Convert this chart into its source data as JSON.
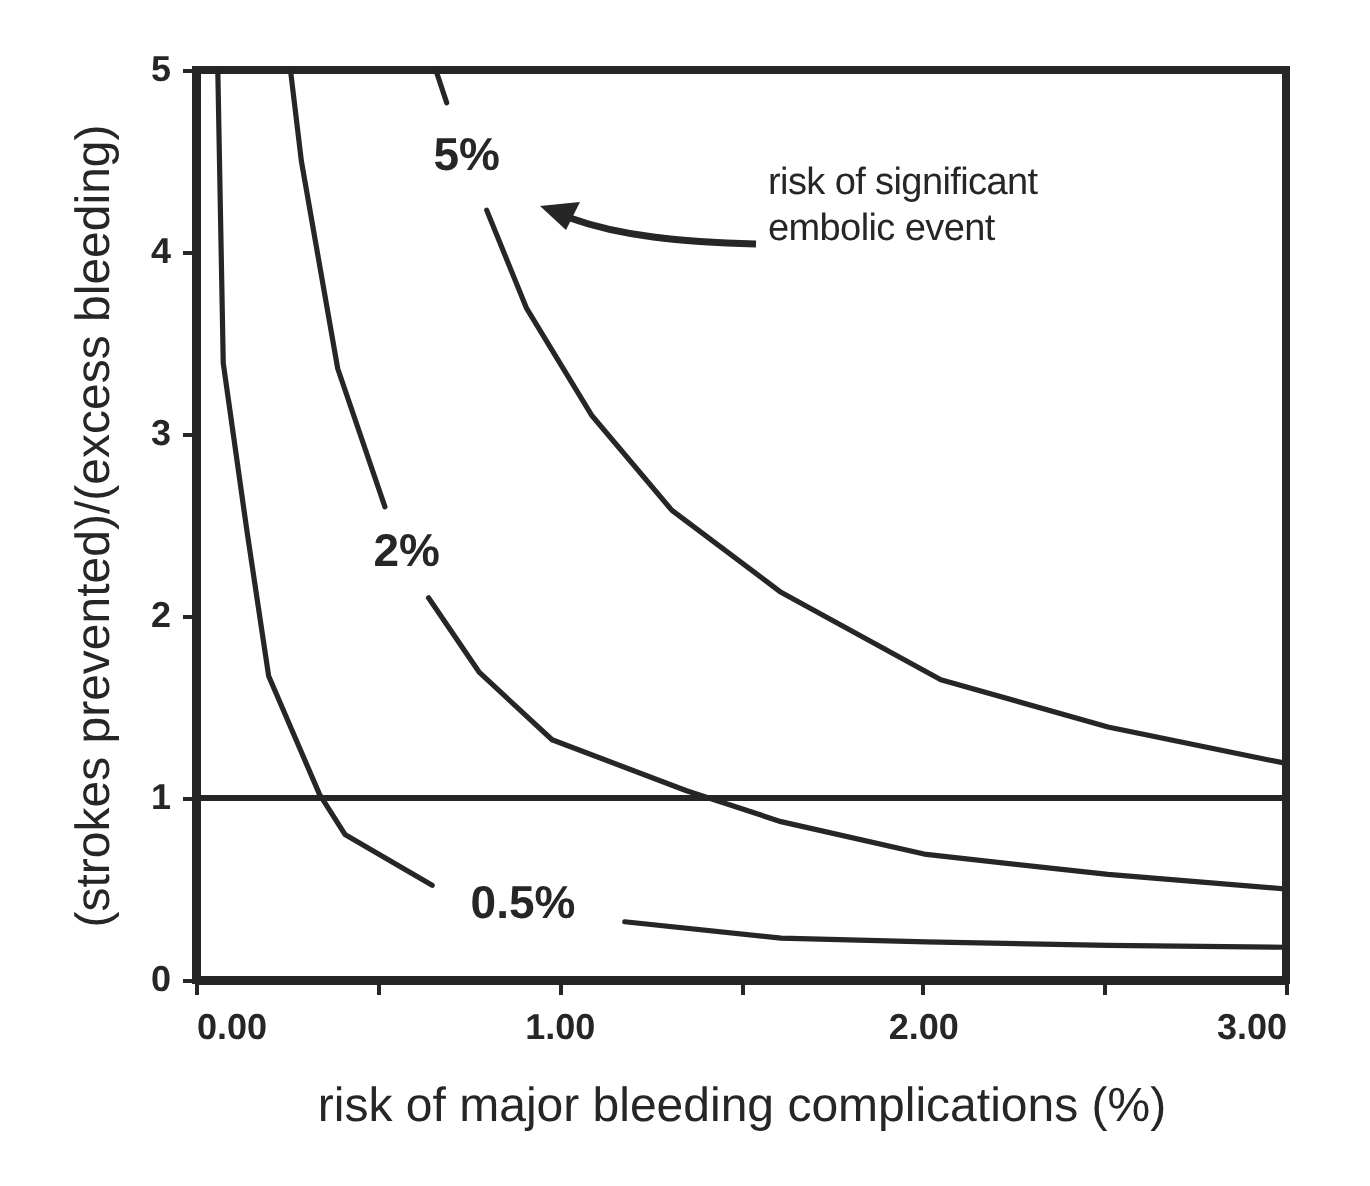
{
  "chart_data": {
    "type": "line",
    "xlabel": "risk of major bleeding complications (%)",
    "ylabel": "(strokes prevented)/(excess bleeding)",
    "annotations": [
      "risk of significant embolic event"
    ],
    "series": [
      {
        "name": "0.5%",
        "color": "#262626",
        "x": [
          0.06,
          0.075,
          0.14,
          0.2,
          0.34,
          0.41,
          0.65,
          0.9,
          1.18,
          1.61,
          2.01,
          2.51,
          3.0
        ],
        "values": [
          5,
          3.39,
          2.47,
          1.67,
          1.02,
          0.8,
          0.52,
          null,
          0.32,
          0.23,
          0.21,
          0.19,
          0.18
        ]
      },
      {
        "name": "2%",
        "color": "#262626",
        "x": [
          0.26,
          0.29,
          0.39,
          0.52,
          0.58,
          0.64,
          0.78,
          0.98,
          1.35,
          1.61,
          2.01,
          2.51,
          3.0
        ],
        "values": [
          5,
          4.5,
          3.36,
          2.6,
          null,
          2.1,
          1.69,
          1.32,
          1.04,
          0.87,
          0.69,
          0.58,
          0.5
        ]
      },
      {
        "name": "5%",
        "color": "#262626",
        "x": [
          0.66,
          0.69,
          0.745,
          0.8,
          0.91,
          1.09,
          1.31,
          1.61,
          2.05,
          2.51,
          3.0
        ],
        "values": [
          5,
          4.82,
          null,
          4.23,
          3.69,
          3.1,
          2.58,
          2.13,
          1.65,
          1.39,
          1.19
        ]
      }
    ],
    "ref_lines": [
      {
        "axis": "y",
        "value": 1,
        "color": "#262626"
      }
    ],
    "xlim": [
      0,
      3
    ],
    "xticks": [
      {
        "value": 0,
        "label": "0.00"
      },
      {
        "value": 0.5,
        "label": null
      },
      {
        "value": 1,
        "label": "1.00"
      },
      {
        "value": 1.5,
        "label": null
      },
      {
        "value": 2,
        "label": "2.00"
      },
      {
        "value": 2.5,
        "label": null
      },
      {
        "value": 3,
        "label": "3.00"
      }
    ],
    "ylim": [
      0,
      5
    ],
    "yticks": [
      0,
      1,
      2,
      3,
      4,
      5
    ],
    "marker": "none",
    "line_style": "solid"
  }
}
